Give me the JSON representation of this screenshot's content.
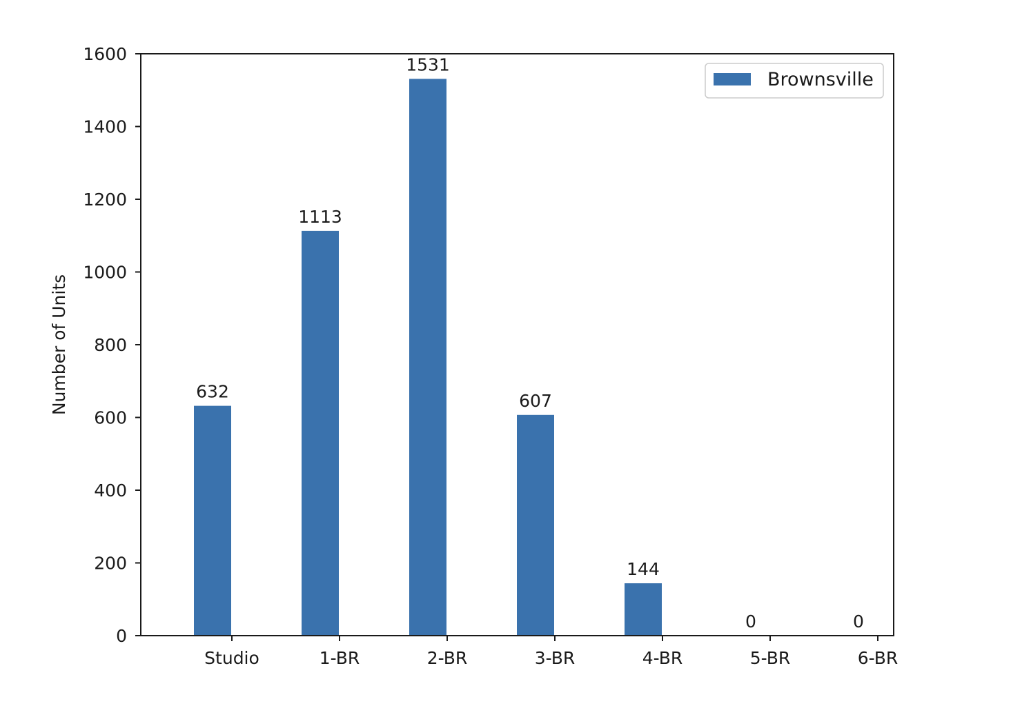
{
  "chart_data": {
    "type": "bar",
    "categories": [
      "Studio",
      "1-BR",
      "2-BR",
      "3-BR",
      "4-BR",
      "5-BR",
      "6-BR"
    ],
    "series": [
      {
        "name": "Brownsville",
        "color": "#3a72ad",
        "values": [
          632,
          1113,
          1531,
          607,
          144,
          0,
          0
        ]
      }
    ],
    "data_labels": [
      "632",
      "1113",
      "1531",
      "607",
      "144",
      "0",
      "0"
    ],
    "ylabel": "Number of Units",
    "ylim": [
      0,
      1600
    ],
    "yticks": [
      0,
      200,
      400,
      600,
      800,
      1000,
      1200,
      1400,
      1600
    ],
    "ytick_labels": [
      "0",
      "200",
      "400",
      "600",
      "800",
      "1000",
      "1200",
      "1400",
      "1600"
    ],
    "grid": false,
    "legend": {
      "position": "top-right"
    }
  }
}
